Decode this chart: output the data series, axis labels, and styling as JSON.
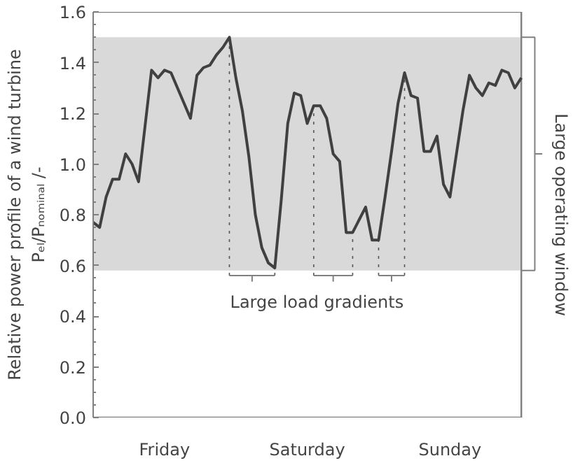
{
  "chart_data": {
    "type": "line",
    "ylabel": "Relative power profile of a wind turbine\nPₑₗ/Pₙₒₘᵢₙₐₗ /-",
    "categories": [
      null,
      null,
      null,
      null,
      null,
      null,
      null,
      null,
      null,
      null,
      null,
      "Friday",
      null,
      null,
      null,
      null,
      null,
      null,
      null,
      null,
      null,
      null,
      null,
      null,
      null,
      null,
      null,
      null,
      null,
      null,
      null,
      null,
      null,
      "Saturday",
      null,
      null,
      null,
      null,
      null,
      null,
      null,
      null,
      null,
      null,
      null,
      null,
      null,
      null,
      null,
      null,
      null,
      null,
      null,
      null,
      null,
      "Sunday",
      null,
      null,
      null,
      null,
      null,
      null,
      null,
      null,
      null,
      null,
      null
    ],
    "series": [
      {
        "color": "#404040",
        "values": [
          0.77,
          0.75,
          0.87,
          0.94,
          0.94,
          1.04,
          1.0,
          0.93,
          1.15,
          1.37,
          1.34,
          1.37,
          1.36,
          1.3,
          1.24,
          1.18,
          1.35,
          1.38,
          1.39,
          1.43,
          1.46,
          1.5,
          1.34,
          1.21,
          1.03,
          0.8,
          0.67,
          0.61,
          0.59,
          0.86,
          1.16,
          1.28,
          1.27,
          1.16,
          1.23,
          1.23,
          1.18,
          1.04,
          1.01,
          0.73,
          0.73,
          0.78,
          0.83,
          0.7,
          0.7,
          0.87,
          1.05,
          1.24,
          1.36,
          1.27,
          1.26,
          1.05,
          1.05,
          1.11,
          0.92,
          0.87,
          1.04,
          1.21,
          1.35,
          1.3,
          1.27,
          1.32,
          1.31,
          1.37,
          1.36,
          1.3,
          1.34
        ]
      }
    ],
    "ylim": [
      0,
      1.6
    ],
    "yticks": [
      {
        "value": 0,
        "label": "0.0"
      },
      {
        "value": 0.2,
        "label": "0.2"
      },
      {
        "value": 0.4,
        "label": "0.4"
      },
      {
        "value": 0.6,
        "label": "0.6"
      },
      {
        "value": 0.8,
        "label": "0.8"
      },
      {
        "value": 1.0,
        "label": "1.0"
      },
      {
        "value": 1.2,
        "label": "1.2"
      },
      {
        "value": 1.4,
        "label": "1.4"
      },
      {
        "value": 1.6,
        "label": "1.6"
      }
    ],
    "bands": [
      {
        "axis": "y",
        "from": 0.58,
        "to": 1.5,
        "label": "Large operating window",
        "color": "#d9d9d9"
      }
    ],
    "annotations": [
      {
        "text": "Large load gradients",
        "y": 0.56
      }
    ],
    "line_style": "solid",
    "marker": "none",
    "grid": false
  }
}
